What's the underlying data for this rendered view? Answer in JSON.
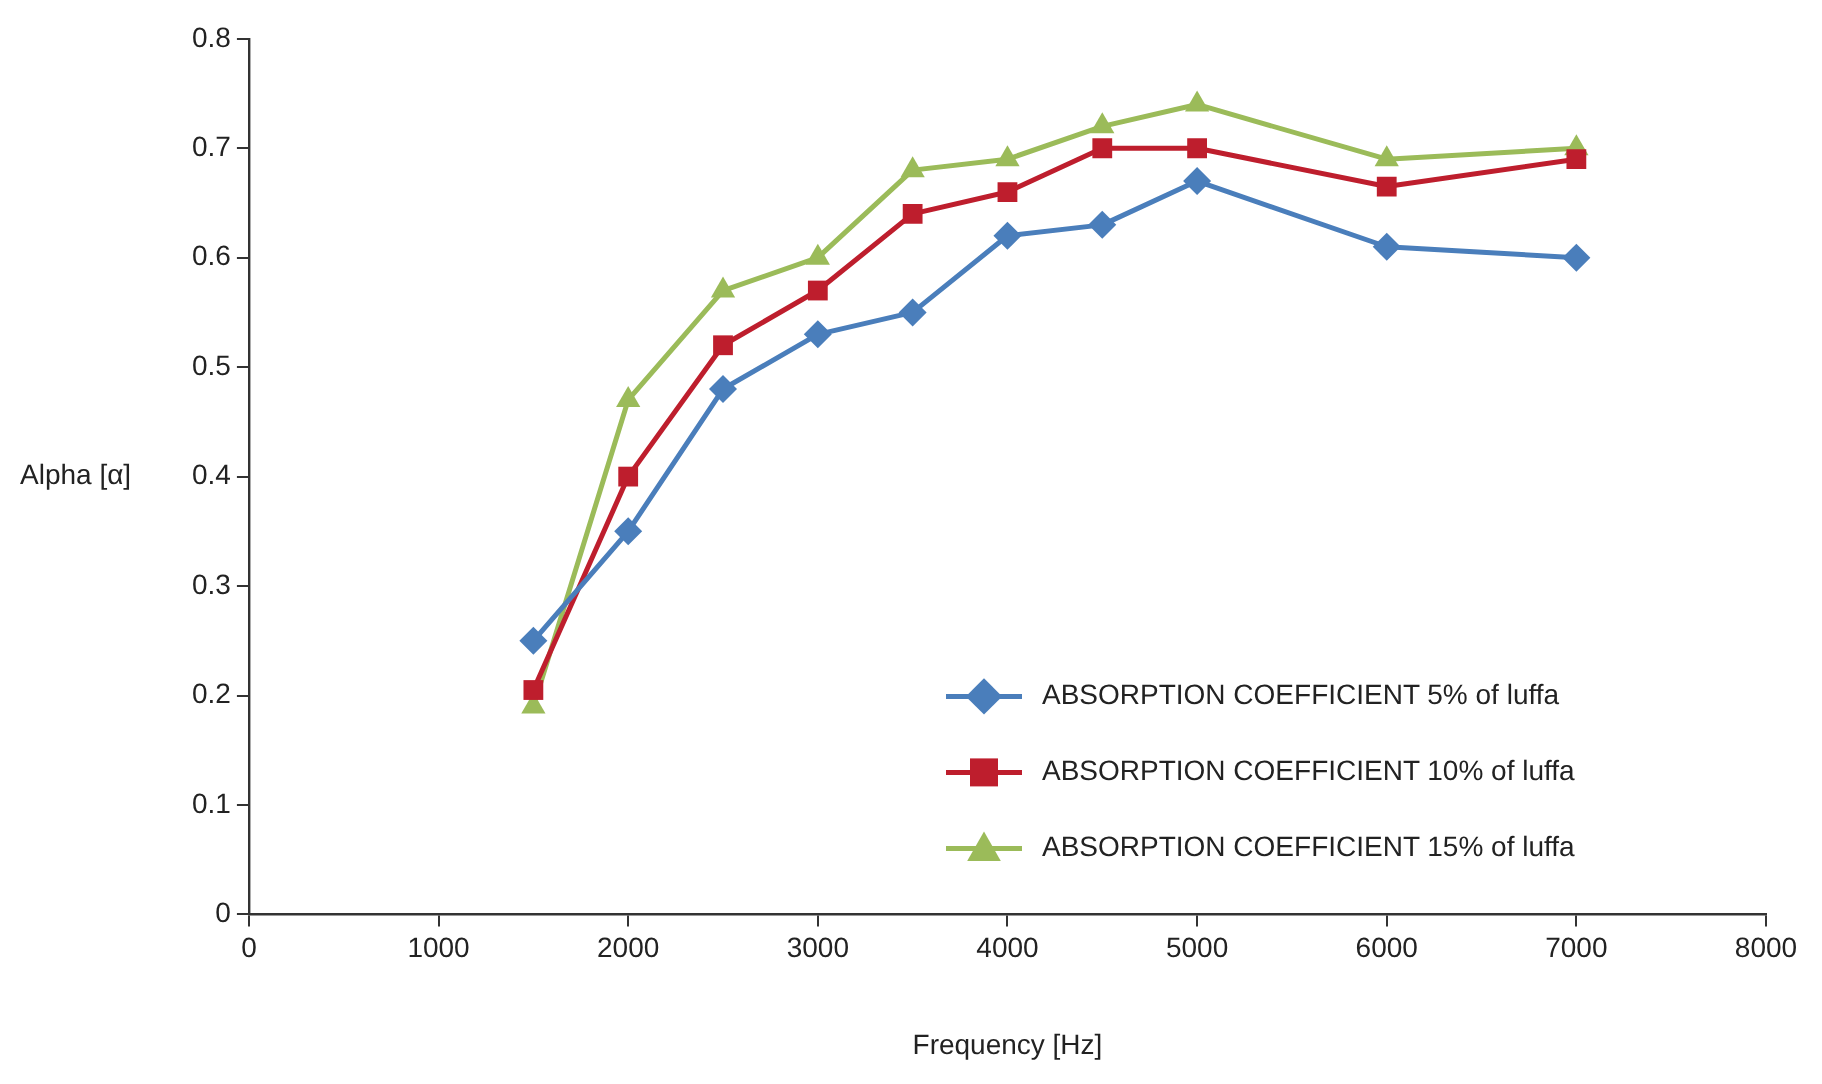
{
  "chart_data": {
    "type": "line",
    "xlabel": "Frequency [Hz]",
    "ylabel": "Alpha [α]",
    "x": [
      1500,
      2000,
      2500,
      3000,
      3500,
      4000,
      4500,
      5000,
      6000,
      7000
    ],
    "series": [
      {
        "name": "ABSORPTION COEFFICIENT 5% of luffa",
        "color": "#4a7ebb",
        "marker": "diamond",
        "values": [
          0.25,
          0.35,
          0.48,
          0.53,
          0.55,
          0.62,
          0.63,
          0.67,
          0.61,
          0.6
        ]
      },
      {
        "name": "ABSORPTION COEFFICIENT 10% of luffa",
        "color": "#be1e2d",
        "marker": "square",
        "values": [
          0.205,
          0.4,
          0.52,
          0.57,
          0.64,
          0.66,
          0.7,
          0.7,
          0.665,
          0.69
        ]
      },
      {
        "name": "ABSORPTION COEFFICIENT 15% of luffa",
        "color": "#9bbb59",
        "marker": "triangle",
        "values": [
          0.19,
          0.47,
          0.57,
          0.6,
          0.68,
          0.69,
          0.72,
          0.74,
          0.69,
          0.7
        ]
      }
    ],
    "xlim": [
      0,
      8000
    ],
    "xticks": [
      0,
      1000,
      2000,
      3000,
      4000,
      5000,
      6000,
      7000,
      8000
    ],
    "ylim": [
      0,
      0.8
    ],
    "yticks": [
      0,
      0.1,
      0.2,
      0.3,
      0.4,
      0.5,
      0.6,
      0.7,
      0.8
    ],
    "grid": false,
    "legend": "bottom right",
    "line_style": "solid"
  }
}
